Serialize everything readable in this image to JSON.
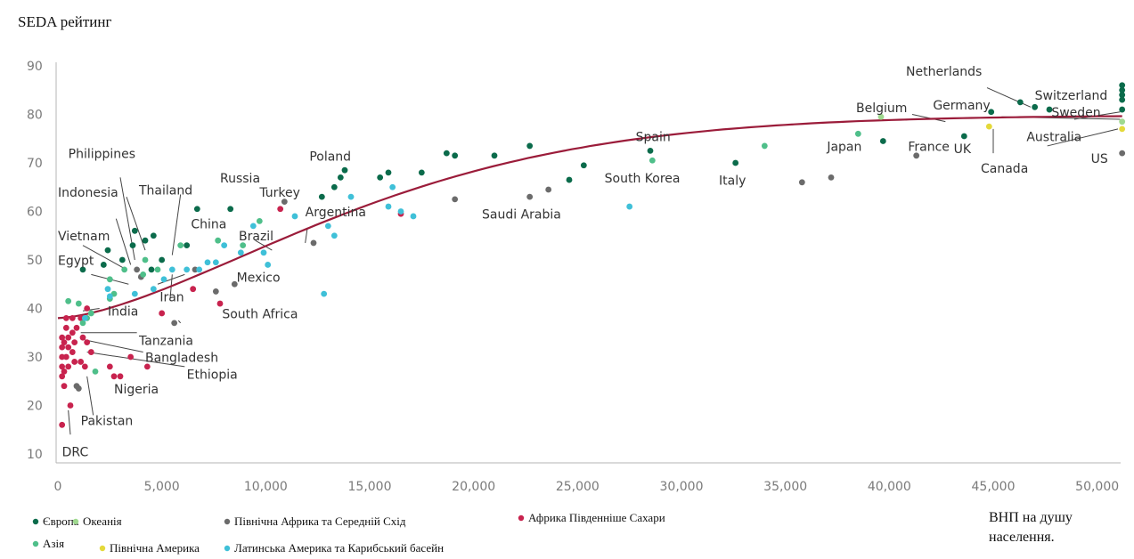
{
  "chart_data": {
    "type": "scatter",
    "ylabel": "SEDA рейтинг",
    "xlabel_lines": [
      "ВНП на душу",
      "населення."
    ],
    "xlim": [
      0,
      51000
    ],
    "ylim": [
      10,
      90
    ],
    "x_ticks": [
      0,
      5000,
      10000,
      15000,
      20000,
      25000,
      30000,
      35000,
      40000,
      45000,
      50000
    ],
    "x_tick_labels": [
      "0",
      "5,000",
      "10,000",
      "15,000",
      "20,000",
      "25,000",
      "30,000",
      "35,000",
      "40,000",
      "45,000",
      "50,000"
    ],
    "y_ticks": [
      10,
      20,
      30,
      40,
      50,
      60,
      70,
      80,
      90
    ],
    "y_tick_labels": [
      "10",
      "20",
      "30",
      "40",
      "50",
      "60",
      "70",
      "80",
      "90"
    ],
    "grid": false,
    "legend_position": "bottom",
    "series": [
      {
        "key": "europe",
        "name": "Європа",
        "color": "#0b6b4b",
        "points": [
          [
            1200,
            48
          ],
          [
            2200,
            49
          ],
          [
            2400,
            52
          ],
          [
            3100,
            50
          ],
          [
            3600,
            53
          ],
          [
            3700,
            56
          ],
          [
            4200,
            54
          ],
          [
            4500,
            48
          ],
          [
            4600,
            55
          ],
          [
            5000,
            50
          ],
          [
            6200,
            53
          ],
          [
            6700,
            60.5
          ],
          [
            8300,
            60.5
          ],
          [
            12700,
            63
          ],
          [
            13300,
            65
          ],
          [
            13600,
            67
          ],
          [
            13800,
            68.5
          ],
          [
            15500,
            67
          ],
          [
            15900,
            68
          ],
          [
            17500,
            68
          ],
          [
            18700,
            72
          ],
          [
            19100,
            71.5
          ],
          [
            21000,
            71.5
          ],
          [
            22700,
            73.5
          ],
          [
            24600,
            66.5
          ],
          [
            25300,
            69.5
          ],
          [
            28500,
            72.5
          ],
          [
            32600,
            70
          ],
          [
            39700,
            74.5
          ],
          [
            43600,
            75.5
          ],
          [
            44900,
            80.5
          ],
          [
            46300,
            82.5
          ],
          [
            47000,
            81.5
          ],
          [
            47700,
            81
          ],
          [
            51200,
            86
          ],
          [
            51200,
            85
          ],
          [
            51200,
            84
          ],
          [
            51200,
            83
          ],
          [
            51200,
            81
          ]
        ]
      },
      {
        "key": "oceania",
        "name": "Океанія",
        "color": "#9fd98f",
        "points": [
          [
            39600,
            79.5
          ],
          [
            51200,
            78.5
          ]
        ]
      },
      {
        "key": "mena",
        "name": "Північна Африка та Середній Схід",
        "color": "#6b6b6b",
        "points": [
          [
            900,
            24
          ],
          [
            1000,
            23.5
          ],
          [
            3800,
            48
          ],
          [
            4000,
            46.5
          ],
          [
            5600,
            37
          ],
          [
            6600,
            48
          ],
          [
            7600,
            43.5
          ],
          [
            8500,
            45
          ],
          [
            10900,
            62
          ],
          [
            12300,
            53.5
          ],
          [
            19100,
            62.5
          ],
          [
            22700,
            63
          ],
          [
            23600,
            64.5
          ],
          [
            35800,
            66
          ],
          [
            37200,
            67
          ],
          [
            41300,
            71.5
          ],
          [
            51200,
            72
          ]
        ]
      },
      {
        "key": "ssa",
        "name": "Африка Південніше Сахари",
        "color": "#c8234e",
        "points": [
          [
            200,
            16
          ],
          [
            600,
            20
          ],
          [
            300,
            24
          ],
          [
            200,
            26
          ],
          [
            300,
            27
          ],
          [
            200,
            28
          ],
          [
            500,
            28
          ],
          [
            800,
            29
          ],
          [
            1100,
            29
          ],
          [
            1300,
            28
          ],
          [
            200,
            30
          ],
          [
            400,
            30
          ],
          [
            700,
            31
          ],
          [
            200,
            32
          ],
          [
            500,
            32
          ],
          [
            800,
            33
          ],
          [
            300,
            33
          ],
          [
            200,
            34
          ],
          [
            500,
            34
          ],
          [
            700,
            35
          ],
          [
            400,
            36
          ],
          [
            900,
            36
          ],
          [
            1200,
            34
          ],
          [
            1400,
            33
          ],
          [
            1600,
            31
          ],
          [
            1100,
            38
          ],
          [
            700,
            38
          ],
          [
            400,
            38
          ],
          [
            1400,
            40
          ],
          [
            2500,
            28
          ],
          [
            2700,
            26
          ],
          [
            3000,
            26
          ],
          [
            3500,
            30
          ],
          [
            4300,
            28
          ],
          [
            5000,
            39
          ],
          [
            6500,
            44
          ],
          [
            7800,
            41
          ],
          [
            10700,
            60.5
          ],
          [
            16500,
            59.5
          ]
        ]
      },
      {
        "key": "asia",
        "name": "Азія",
        "color": "#4fbf8a",
        "points": [
          [
            500,
            41.5
          ],
          [
            1000,
            41
          ],
          [
            1200,
            37
          ],
          [
            1400,
            38
          ],
          [
            1600,
            39
          ],
          [
            1800,
            27
          ],
          [
            2500,
            42
          ],
          [
            2700,
            43
          ],
          [
            2500,
            46
          ],
          [
            3200,
            48
          ],
          [
            4100,
            47
          ],
          [
            4200,
            50
          ],
          [
            4800,
            48
          ],
          [
            5900,
            53
          ],
          [
            7700,
            54
          ],
          [
            8900,
            53
          ],
          [
            9700,
            58
          ],
          [
            28600,
            70.5
          ],
          [
            34000,
            73.5
          ],
          [
            38500,
            76
          ]
        ]
      },
      {
        "key": "namerica",
        "name": "Північна Америка",
        "color": "#e4d93a",
        "points": [
          [
            44800,
            77.5
          ],
          [
            51200,
            77
          ]
        ]
      },
      {
        "key": "latam",
        "name": "Латинська Америка та Карибський басейн",
        "color": "#3fc0d8",
        "points": [
          [
            1300,
            38
          ],
          [
            2400,
            44
          ],
          [
            2500,
            42.5
          ],
          [
            3700,
            43
          ],
          [
            4600,
            44
          ],
          [
            5100,
            46
          ],
          [
            5500,
            48
          ],
          [
            6200,
            48
          ],
          [
            6800,
            48
          ],
          [
            7200,
            49.5
          ],
          [
            7600,
            49.5
          ],
          [
            8000,
            53
          ],
          [
            8800,
            51.5
          ],
          [
            9400,
            57
          ],
          [
            9900,
            51.5
          ],
          [
            10100,
            49
          ],
          [
            11400,
            59
          ],
          [
            12800,
            43
          ],
          [
            13000,
            57
          ],
          [
            13300,
            55
          ],
          [
            14100,
            63
          ],
          [
            15900,
            61
          ],
          [
            16100,
            65
          ],
          [
            16500,
            60
          ],
          [
            17100,
            59
          ],
          [
            27500,
            61
          ]
        ]
      }
    ],
    "trend": {
      "type": "logistic",
      "x_range": [
        0,
        51200
      ],
      "y_at_x0": 38,
      "y_at_xmax": 79
    }
  },
  "annotations": [
    {
      "text": "Netherlands",
      "x": 40800,
      "y": 88
    },
    {
      "text": "Switzerland",
      "x": 47000,
      "y": 83
    },
    {
      "text": "Sweden",
      "x": 47800,
      "y": 79.5
    },
    {
      "text": "Germany",
      "x": 42100,
      "y": 81
    },
    {
      "text": "Belgium",
      "x": 38400,
      "y": 80.5
    },
    {
      "text": "Japan",
      "x": 37000,
      "y": 72.5
    },
    {
      "text": "France",
      "x": 40900,
      "y": 72.5
    },
    {
      "text": "UK",
      "x": 43100,
      "y": 72
    },
    {
      "text": "Canada",
      "x": 44400,
      "y": 68
    },
    {
      "text": "Australia",
      "x": 46600,
      "y": 74.5
    },
    {
      "text": "US",
      "x": 49700,
      "y": 70
    },
    {
      "text": "Spain",
      "x": 27800,
      "y": 74.5
    },
    {
      "text": "South Korea",
      "x": 26300,
      "y": 66
    },
    {
      "text": "Italy",
      "x": 31800,
      "y": 65.5
    },
    {
      "text": "Saudi Arabia",
      "x": 20400,
      "y": 58.5
    },
    {
      "text": "Poland",
      "x": 12100,
      "y": 70.5
    },
    {
      "text": "Russia",
      "x": 7800,
      "y": 66
    },
    {
      "text": "Turkey",
      "x": 9700,
      "y": 63
    },
    {
      "text": "Argentina",
      "x": 11900,
      "y": 59
    },
    {
      "text": "China",
      "x": 6400,
      "y": 56.5
    },
    {
      "text": "Brazil",
      "x": 8700,
      "y": 54
    },
    {
      "text": "Thailand",
      "x": 3900,
      "y": 63.5
    },
    {
      "text": "Philippines",
      "x": 500,
      "y": 71
    },
    {
      "text": "Indonesia",
      "x": 0,
      "y": 63
    },
    {
      "text": "Vietnam",
      "x": 0,
      "y": 54
    },
    {
      "text": "Egypt",
      "x": 0,
      "y": 49
    },
    {
      "text": "Mexico",
      "x": 8600,
      "y": 45.5
    },
    {
      "text": "Iran",
      "x": 4900,
      "y": 41.5
    },
    {
      "text": "India",
      "x": 2400,
      "y": 38.5
    },
    {
      "text": "South Africa",
      "x": 7900,
      "y": 38
    },
    {
      "text": "Tanzania",
      "x": 3900,
      "y": 32.5
    },
    {
      "text": "Bangladesh",
      "x": 4200,
      "y": 29
    },
    {
      "text": "Ethiopia",
      "x": 6200,
      "y": 25.5
    },
    {
      "text": "Nigeria",
      "x": 2700,
      "y": 22.5
    },
    {
      "text": "Pakistan",
      "x": 1100,
      "y": 16
    },
    {
      "text": "DRC",
      "x": 200,
      "y": 9.5
    }
  ],
  "leader_lines": [
    [
      [
        44700,
        85.5
      ],
      [
        46800,
        81.5
      ]
    ],
    [
      [
        48900,
        79
      ],
      [
        51100,
        80.5
      ]
    ],
    [
      [
        41100,
        80
      ],
      [
        42700,
        78.5
      ]
    ],
    [
      [
        45400,
        79.5
      ],
      [
        51100,
        79
      ]
    ],
    [
      [
        47600,
        73.5
      ],
      [
        51000,
        77
      ]
    ],
    [
      [
        45000,
        72
      ],
      [
        45000,
        77
      ]
    ],
    [
      [
        5900,
        63.5
      ],
      [
        5500,
        51
      ]
    ],
    [
      [
        3300,
        63
      ],
      [
        4200,
        52
      ]
    ],
    [
      [
        3000,
        67
      ],
      [
        3700,
        50
      ]
    ],
    [
      [
        2800,
        58.5
      ],
      [
        3500,
        49
      ]
    ],
    [
      [
        1200,
        53
      ],
      [
        3300,
        48
      ]
    ],
    [
      [
        1600,
        47
      ],
      [
        3400,
        45
      ]
    ],
    [
      [
        6100,
        47
      ],
      [
        4800,
        45
      ]
    ],
    [
      [
        5400,
        42
      ],
      [
        5500,
        47
      ]
    ],
    [
      [
        12000,
        56.5
      ],
      [
        11900,
        53.5
      ]
    ],
    [
      [
        10300,
        52
      ],
      [
        9500,
        54
      ]
    ],
    [
      [
        2000,
        40
      ],
      [
        1200,
        39.5
      ]
    ],
    [
      [
        5900,
        37
      ],
      [
        5800,
        37.5
      ]
    ],
    [
      [
        3800,
        35
      ],
      [
        1100,
        35
      ]
    ],
    [
      [
        4100,
        31
      ],
      [
        1300,
        33.5
      ]
    ],
    [
      [
        6100,
        28
      ],
      [
        1400,
        31
      ]
    ],
    [
      [
        1700,
        18
      ],
      [
        1400,
        26
      ]
    ],
    [
      [
        600,
        14
      ],
      [
        500,
        19
      ]
    ]
  ],
  "legend": [
    {
      "key": "europe",
      "label": "Європа",
      "color": "#0b6b4b"
    },
    {
      "key": "oceania",
      "label": "Океанія",
      "color": "#9fd98f"
    },
    {
      "key": "mena",
      "label": "Північна Африка та Середній Схід",
      "color": "#6b6b6b"
    },
    {
      "key": "ssa",
      "label": "Африка Південніше Сахари",
      "color": "#c8234e"
    },
    {
      "key": "asia",
      "label": "Азія",
      "color": "#4fbf8a"
    },
    {
      "key": "namerica",
      "label": "Північна Америка",
      "color": "#e4d93a"
    },
    {
      "key": "latam",
      "label": "Латинська Америка та Карибський басейн",
      "color": "#3fc0d8"
    }
  ],
  "colors": {
    "trend": "#9b1c3a",
    "axis": "#a8a8a8",
    "leader": "#444444"
  }
}
